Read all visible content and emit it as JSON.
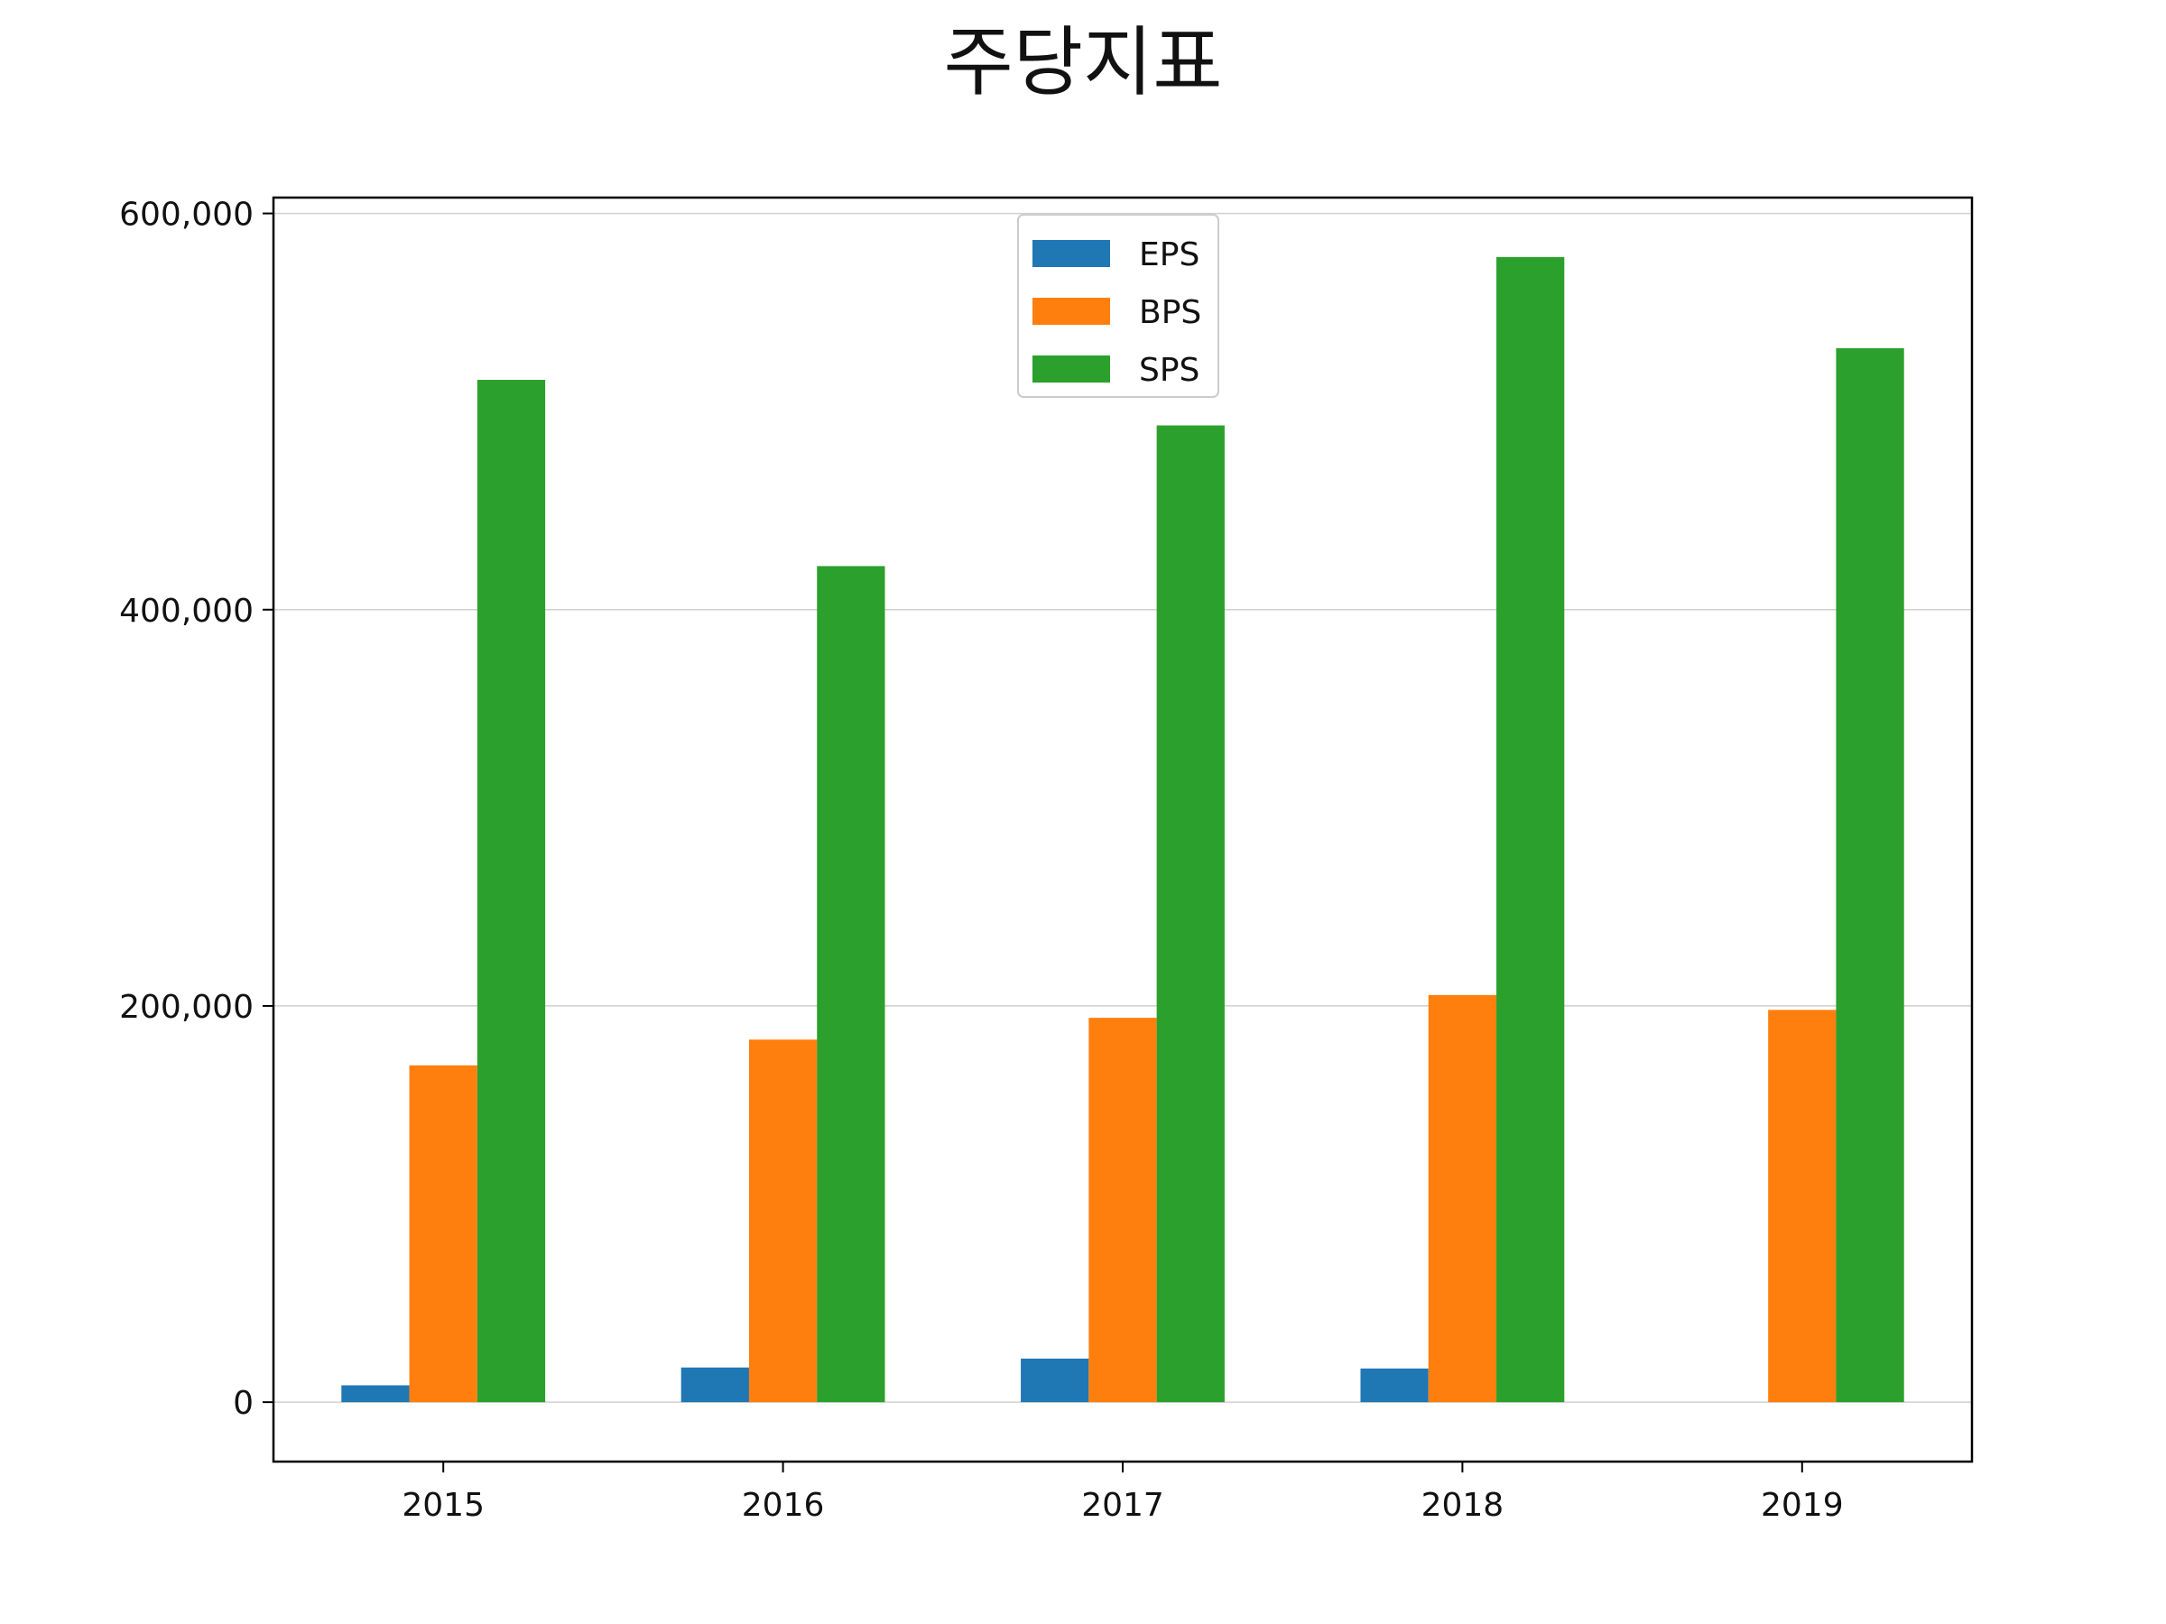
{
  "chart_data": {
    "type": "bar",
    "title": "주당지표",
    "xlabel": "",
    "ylabel": "",
    "categories": [
      "2015",
      "2016",
      "2017",
      "2018",
      "2019"
    ],
    "series": [
      {
        "name": "EPS",
        "color": "#1f77b4",
        "values": [
          8500,
          17500,
          22000,
          17000,
          0
        ]
      },
      {
        "name": "BPS",
        "color": "#ff7f0e",
        "values": [
          170000,
          183000,
          194000,
          205500,
          198000
        ]
      },
      {
        "name": "SPS",
        "color": "#2ca02c",
        "values": [
          516000,
          422000,
          493000,
          578000,
          532000
        ]
      }
    ],
    "ylim": [
      -30000,
      608000
    ],
    "yticks": [
      0,
      200000,
      400000,
      600000
    ],
    "ytick_labels": [
      "0",
      "200,000",
      "400,000",
      "600,000"
    ],
    "grid": "horizontal",
    "legend_position": "upper-center"
  }
}
